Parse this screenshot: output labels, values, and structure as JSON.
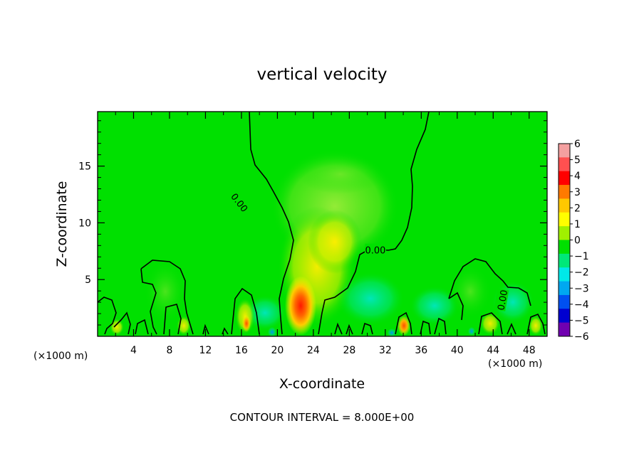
{
  "chart_data": {
    "type": "heatmap",
    "title": "vertical velocity",
    "xlabel": "X-coordinate",
    "ylabel": "Z-coordinate",
    "x_unit_left": "(×1000 m)",
    "x_unit_right": "(×1000 m)",
    "xlim": [
      0,
      50
    ],
    "ylim": [
      0,
      19.8
    ],
    "x_ticks": [
      4,
      8,
      12,
      16,
      20,
      24,
      28,
      32,
      36,
      40,
      44,
      48
    ],
    "y_ticks": [
      5,
      10,
      15
    ],
    "colorbar": {
      "levels": [
        6,
        5,
        4,
        3,
        2,
        1,
        0,
        -1,
        -2,
        -3,
        -4,
        -5,
        -6
      ],
      "colors": [
        "#f4a0a0",
        "#ff5050",
        "#ff0000",
        "#ff7a00",
        "#ffc800",
        "#ffff00",
        "#a0f000",
        "#00e000",
        "#00e878",
        "#00e8e8",
        "#00a8f0",
        "#0050f0",
        "#0000d0",
        "#7000b0"
      ]
    },
    "contour_labels": [
      {
        "text": "0.00",
        "x": 15.8,
        "z": 11.8,
        "angle": 52
      },
      {
        "text": "0.00",
        "x": 30.9,
        "z": 7.6,
        "angle": 0
      },
      {
        "text": "0.00",
        "x": 45.0,
        "z": 3.2,
        "angle": -80
      }
    ],
    "contour_interval_text": "CONTOUR INTERVAL =  8.000E+00"
  }
}
